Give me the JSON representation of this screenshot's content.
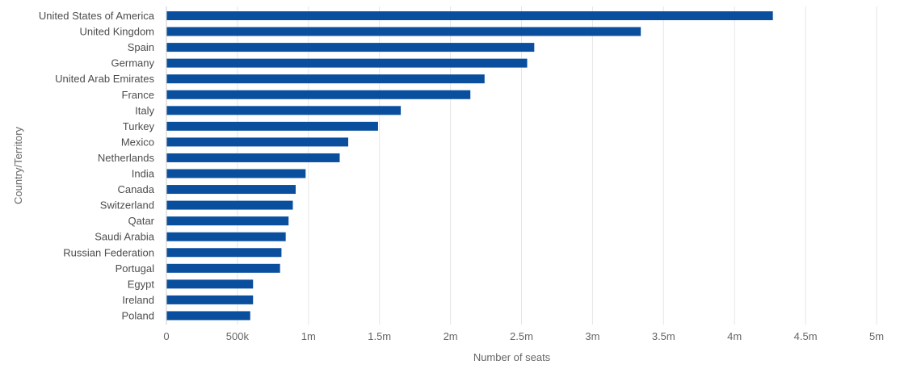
{
  "chart_data": {
    "type": "bar",
    "orientation": "horizontal",
    "categories": [
      "United States of America",
      "United Kingdom",
      "Spain",
      "Germany",
      "United Arab Emirates",
      "France",
      "Italy",
      "Turkey",
      "Mexico",
      "Netherlands",
      "India",
      "Canada",
      "Switzerland",
      "Qatar",
      "Saudi Arabia",
      "Russian Federation",
      "Portugal",
      "Egypt",
      "Ireland",
      "Poland"
    ],
    "values": [
      4270000,
      3340000,
      2590000,
      2540000,
      2240000,
      2140000,
      1650000,
      1490000,
      1280000,
      1220000,
      980000,
      910000,
      890000,
      860000,
      840000,
      810000,
      800000,
      610000,
      610000,
      590000
    ],
    "xlabel": "Number of seats",
    "ylabel": "Country/Territory",
    "xlim": [
      0,
      5000000
    ],
    "x_ticks": [
      0,
      500000,
      1000000,
      1500000,
      2000000,
      2500000,
      3000000,
      3500000,
      4000000,
      4500000,
      5000000
    ],
    "x_tick_labels": [
      "0",
      "500k",
      "1m",
      "1.5m",
      "2m",
      "2.5m",
      "3m",
      "3.5m",
      "4m",
      "4.5m",
      "5m"
    ],
    "grid": "vertical",
    "bar_color": "#0a4f9e"
  }
}
